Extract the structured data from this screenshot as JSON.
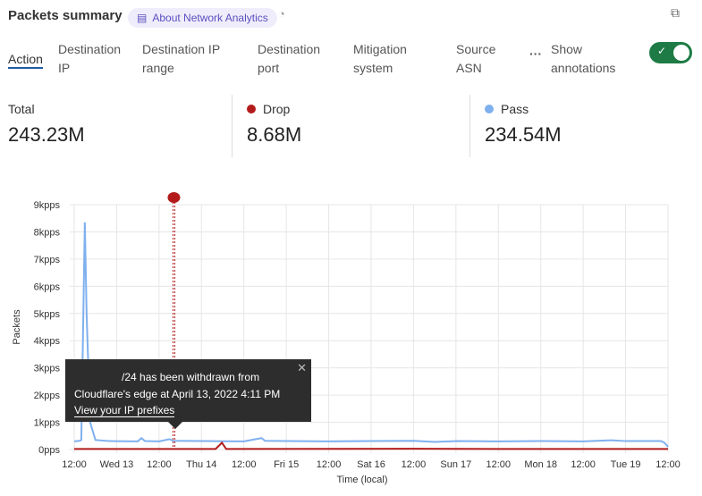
{
  "header": {
    "title": "Packets summary",
    "about_label": "About Network Analytics",
    "about_icon": "book-icon",
    "chart_type_icon": "pie-chart-icon",
    "copy_icon": "copy-icon"
  },
  "tabs": [
    {
      "label": "Action",
      "active": true
    },
    {
      "label": "Destination IP"
    },
    {
      "label": "Destination IP range"
    },
    {
      "label": "Destination port"
    },
    {
      "label": "Mitigation system"
    },
    {
      "label": "Source ASN"
    }
  ],
  "more_icon": "ellipsis-icon",
  "annotations_toggle": {
    "label": "Show annotations",
    "on": true,
    "color": "#1e7b45"
  },
  "stats": [
    {
      "label": "Total",
      "value": "243.23M"
    },
    {
      "label": "Drop",
      "value": "8.68M",
      "color": "#b31b1b"
    },
    {
      "label": "Pass",
      "value": "234.54M",
      "color": "#7fb0ee"
    }
  ],
  "tooltip": {
    "line1": "/24 has been withdrawn from",
    "line2": "Cloudflare's edge at April 13, 2022 4:11 PM",
    "link": "View your IP prefixes",
    "close_icon": "close-icon"
  },
  "chart_data": {
    "type": "line",
    "xlabel": "Time (local)",
    "ylabel": "Packets",
    "x_ticks": [
      "12:00",
      "Wed 13",
      "12:00",
      "Thu 14",
      "12:00",
      "Fri 15",
      "12:00",
      "Sat 16",
      "12:00",
      "Sun 17",
      "12:00",
      "Mon 18",
      "12:00",
      "Tue 19",
      "12:00"
    ],
    "y_ticks": [
      "0pps",
      "1kpps",
      "2kpps",
      "3kpps",
      "4kpps",
      "5kpps",
      "6kpps",
      "7kpps",
      "8kpps",
      "9kpps"
    ],
    "ylim": [
      0,
      9000
    ],
    "xlim_hours_from_first_tick": [
      0,
      168
    ],
    "grid": true,
    "annotation_hour": 28.2,
    "annotation_color": "#b31b1b",
    "series": [
      {
        "name": "Pass",
        "color": "#7fb0ee",
        "points": [
          [
            0,
            300
          ],
          [
            1.5,
            320
          ],
          [
            2,
            350
          ],
          [
            3,
            8350
          ],
          [
            3.5,
            5000
          ],
          [
            4.5,
            1000
          ],
          [
            6,
            350
          ],
          [
            10,
            310
          ],
          [
            18,
            300
          ],
          [
            19,
            420
          ],
          [
            20,
            310
          ],
          [
            24,
            300
          ],
          [
            27,
            380
          ],
          [
            28,
            320
          ],
          [
            36,
            310
          ],
          [
            48,
            300
          ],
          [
            53,
            420
          ],
          [
            54,
            320
          ],
          [
            60,
            310
          ],
          [
            72,
            300
          ],
          [
            84,
            310
          ],
          [
            96,
            320
          ],
          [
            102,
            280
          ],
          [
            108,
            310
          ],
          [
            120,
            300
          ],
          [
            132,
            310
          ],
          [
            144,
            300
          ],
          [
            152,
            340
          ],
          [
            156,
            310
          ],
          [
            166,
            310
          ],
          [
            167,
            250
          ],
          [
            168,
            100
          ]
        ]
      },
      {
        "name": "Drop",
        "color": "#b31b1b",
        "points": [
          [
            0,
            20
          ],
          [
            40,
            20
          ],
          [
            41.8,
            250
          ],
          [
            43,
            20
          ],
          [
            96,
            30
          ],
          [
            120,
            20
          ],
          [
            168,
            20
          ]
        ]
      }
    ]
  }
}
